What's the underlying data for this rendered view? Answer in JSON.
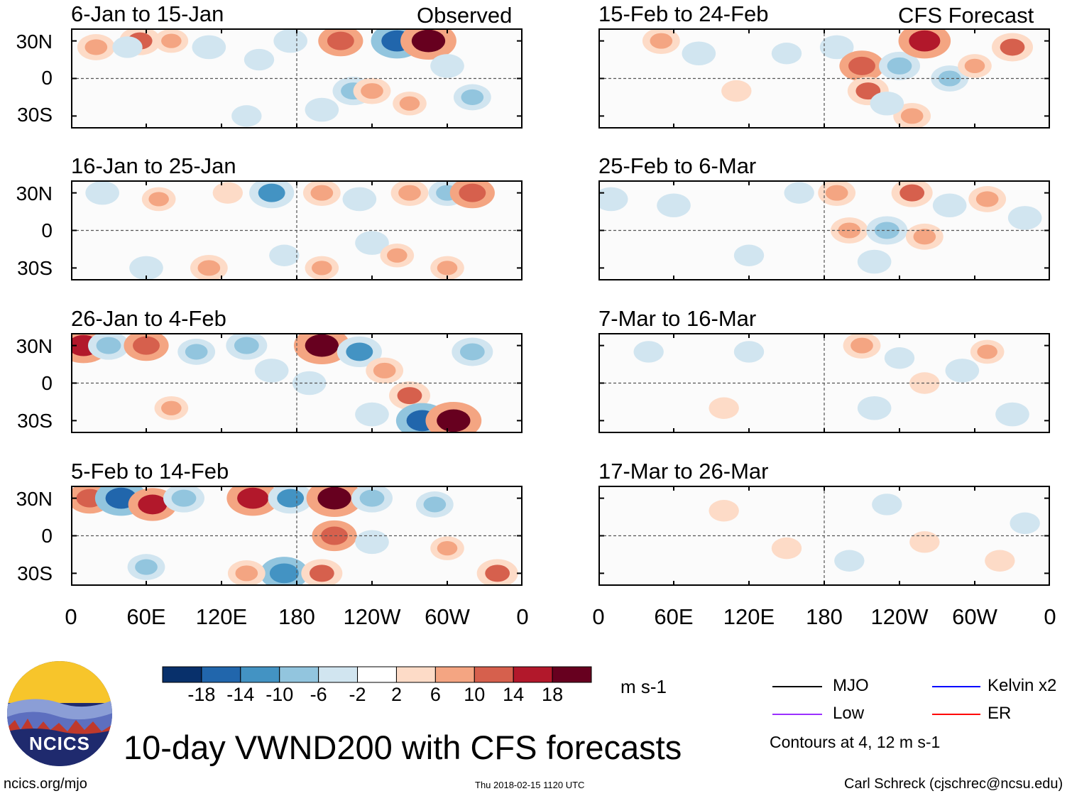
{
  "chart_data": {
    "type": "heatmap",
    "title": "10-day VWND200 with CFS forecasts",
    "columns": [
      {
        "label": "Observed",
        "panels": [
          {
            "period": "6-Jan to 15-Jan",
            "cells": [
              {
                "lon": 20,
                "lat": 25,
                "v": 8
              },
              {
                "lon": 55,
                "lat": 30,
                "v": 10
              },
              {
                "lon": 45,
                "lat": 25,
                "v": -4
              },
              {
                "lon": 80,
                "lat": 30,
                "v": 6
              },
              {
                "lon": 110,
                "lat": 25,
                "v": -6
              },
              {
                "lon": 150,
                "lat": 15,
                "v": -4
              },
              {
                "lon": 175,
                "lat": 30,
                "v": -6
              },
              {
                "lon": 215,
                "lat": 30,
                "v": 12
              },
              {
                "lon": 225,
                "lat": -10,
                "v": -10
              },
              {
                "lon": 240,
                "lat": -10,
                "v": 8
              },
              {
                "lon": 260,
                "lat": 30,
                "v": -16
              },
              {
                "lon": 285,
                "lat": 30,
                "v": 18
              },
              {
                "lon": 270,
                "lat": -20,
                "v": 6
              },
              {
                "lon": 300,
                "lat": 10,
                "v": -6
              },
              {
                "lon": 320,
                "lat": -15,
                "v": -8
              },
              {
                "lon": 200,
                "lat": -25,
                "v": -6
              },
              {
                "lon": 140,
                "lat": -30,
                "v": -4
              }
            ]
          },
          {
            "period": "16-Jan to 25-Jan",
            "cells": [
              {
                "lon": 25,
                "lat": 30,
                "v": -6
              },
              {
                "lon": 70,
                "lat": 25,
                "v": 6
              },
              {
                "lon": 125,
                "lat": 30,
                "v": 4
              },
              {
                "lon": 160,
                "lat": 30,
                "v": -12
              },
              {
                "lon": 200,
                "lat": 30,
                "v": 8
              },
              {
                "lon": 230,
                "lat": 25,
                "v": -6
              },
              {
                "lon": 270,
                "lat": 30,
                "v": 8
              },
              {
                "lon": 300,
                "lat": 30,
                "v": -8
              },
              {
                "lon": 320,
                "lat": 30,
                "v": 12
              },
              {
                "lon": 240,
                "lat": -10,
                "v": -6
              },
              {
                "lon": 260,
                "lat": -20,
                "v": 6
              },
              {
                "lon": 300,
                "lat": -30,
                "v": 6
              },
              {
                "lon": 60,
                "lat": -30,
                "v": -6
              },
              {
                "lon": 110,
                "lat": -30,
                "v": 8
              },
              {
                "lon": 170,
                "lat": -20,
                "v": -4
              },
              {
                "lon": 200,
                "lat": -30,
                "v": 6
              }
            ]
          },
          {
            "period": "26-Jan to 4-Feb",
            "cells": [
              {
                "lon": 10,
                "lat": 30,
                "v": 16
              },
              {
                "lon": 30,
                "lat": 30,
                "v": -10
              },
              {
                "lon": 60,
                "lat": 30,
                "v": 12
              },
              {
                "lon": 100,
                "lat": 25,
                "v": -8
              },
              {
                "lon": 140,
                "lat": 30,
                "v": -10
              },
              {
                "lon": 160,
                "lat": 10,
                "v": -6
              },
              {
                "lon": 200,
                "lat": 30,
                "v": 18
              },
              {
                "lon": 230,
                "lat": 25,
                "v": -12
              },
              {
                "lon": 250,
                "lat": 10,
                "v": 8
              },
              {
                "lon": 270,
                "lat": -10,
                "v": 10
              },
              {
                "lon": 280,
                "lat": -30,
                "v": -16
              },
              {
                "lon": 305,
                "lat": -30,
                "v": 18
              },
              {
                "lon": 320,
                "lat": 25,
                "v": -10
              },
              {
                "lon": 80,
                "lat": -20,
                "v": 6
              },
              {
                "lon": 190,
                "lat": 0,
                "v": -6
              },
              {
                "lon": 240,
                "lat": -25,
                "v": -6
              }
            ]
          },
          {
            "period": "5-Feb to 14-Feb",
            "cells": [
              {
                "lon": 15,
                "lat": 30,
                "v": 12
              },
              {
                "lon": 40,
                "lat": 30,
                "v": -16
              },
              {
                "lon": 65,
                "lat": 25,
                "v": 14
              },
              {
                "lon": 90,
                "lat": 30,
                "v": -10
              },
              {
                "lon": 145,
                "lat": 30,
                "v": 16
              },
              {
                "lon": 175,
                "lat": 30,
                "v": -12
              },
              {
                "lon": 210,
                "lat": 30,
                "v": 18
              },
              {
                "lon": 240,
                "lat": 30,
                "v": -10
              },
              {
                "lon": 210,
                "lat": 0,
                "v": 12
              },
              {
                "lon": 240,
                "lat": -5,
                "v": -6
              },
              {
                "lon": 170,
                "lat": -30,
                "v": -14
              },
              {
                "lon": 200,
                "lat": -30,
                "v": 10
              },
              {
                "lon": 140,
                "lat": -30,
                "v": 8
              },
              {
                "lon": 60,
                "lat": -25,
                "v": -8
              },
              {
                "lon": 290,
                "lat": 25,
                "v": -8
              },
              {
                "lon": 340,
                "lat": -30,
                "v": 10
              },
              {
                "lon": 300,
                "lat": -10,
                "v": 6
              }
            ]
          }
        ]
      },
      {
        "label": "CFS Forecast",
        "panels": [
          {
            "period": "15-Feb to 24-Feb",
            "cells": [
              {
                "lon": 50,
                "lat": 30,
                "v": 8
              },
              {
                "lon": 80,
                "lat": 20,
                "v": -6
              },
              {
                "lon": 150,
                "lat": 20,
                "v": -4
              },
              {
                "lon": 190,
                "lat": 25,
                "v": -6
              },
              {
                "lon": 210,
                "lat": 10,
                "v": 12
              },
              {
                "lon": 215,
                "lat": -10,
                "v": 10
              },
              {
                "lon": 240,
                "lat": 10,
                "v": -10
              },
              {
                "lon": 260,
                "lat": 30,
                "v": 16
              },
              {
                "lon": 280,
                "lat": 0,
                "v": -8
              },
              {
                "lon": 300,
                "lat": 10,
                "v": 6
              },
              {
                "lon": 330,
                "lat": 25,
                "v": 10
              },
              {
                "lon": 250,
                "lat": -30,
                "v": 8
              },
              {
                "lon": 230,
                "lat": -20,
                "v": -6
              },
              {
                "lon": 110,
                "lat": -10,
                "v": 4
              }
            ]
          },
          {
            "period": "25-Feb to 6-Mar",
            "cells": [
              {
                "lon": 10,
                "lat": 25,
                "v": -6
              },
              {
                "lon": 60,
                "lat": 20,
                "v": -6
              },
              {
                "lon": 160,
                "lat": 30,
                "v": -4
              },
              {
                "lon": 190,
                "lat": 30,
                "v": 8
              },
              {
                "lon": 200,
                "lat": 0,
                "v": 8
              },
              {
                "lon": 230,
                "lat": 0,
                "v": -10
              },
              {
                "lon": 260,
                "lat": -5,
                "v": 8
              },
              {
                "lon": 250,
                "lat": 30,
                "v": 10
              },
              {
                "lon": 280,
                "lat": 20,
                "v": -6
              },
              {
                "lon": 310,
                "lat": 25,
                "v": 8
              },
              {
                "lon": 340,
                "lat": 10,
                "v": -6
              },
              {
                "lon": 120,
                "lat": -20,
                "v": -4
              },
              {
                "lon": 220,
                "lat": -25,
                "v": -6
              }
            ]
          },
          {
            "period": "7-Mar to 16-Mar",
            "cells": [
              {
                "lon": 40,
                "lat": 25,
                "v": -4
              },
              {
                "lon": 120,
                "lat": 25,
                "v": -4
              },
              {
                "lon": 210,
                "lat": 30,
                "v": 8
              },
              {
                "lon": 240,
                "lat": 20,
                "v": -4
              },
              {
                "lon": 260,
                "lat": 0,
                "v": 4
              },
              {
                "lon": 290,
                "lat": 10,
                "v": -6
              },
              {
                "lon": 310,
                "lat": 25,
                "v": 6
              },
              {
                "lon": 220,
                "lat": -20,
                "v": -6
              },
              {
                "lon": 330,
                "lat": -25,
                "v": -6
              },
              {
                "lon": 100,
                "lat": -20,
                "v": 4
              }
            ]
          },
          {
            "period": "17-Mar to 26-Mar",
            "cells": [
              {
                "lon": 100,
                "lat": 20,
                "v": 4
              },
              {
                "lon": 150,
                "lat": -10,
                "v": 4
              },
              {
                "lon": 200,
                "lat": -20,
                "v": -4
              },
              {
                "lon": 230,
                "lat": 25,
                "v": -4
              },
              {
                "lon": 260,
                "lat": -5,
                "v": 4
              },
              {
                "lon": 320,
                "lat": -20,
                "v": 4
              },
              {
                "lon": 340,
                "lat": 10,
                "v": -4
              }
            ]
          }
        ]
      }
    ],
    "xticks": [
      "0",
      "60E",
      "120E",
      "180",
      "120W",
      "60W",
      "0"
    ],
    "yticks": [
      "30N",
      "0",
      "30S"
    ],
    "xlim": [
      0,
      360
    ],
    "ylim": [
      -40,
      40
    ],
    "levels": [
      -18,
      -14,
      -10,
      -6,
      -2,
      2,
      6,
      10,
      14,
      18
    ],
    "colors": [
      "#08306b",
      "#2166ac",
      "#4393c3",
      "#92c5de",
      "#d1e5f0",
      "#ffffff",
      "#fddbc7",
      "#f4a582",
      "#d6604d",
      "#b2182b",
      "#67001f"
    ],
    "units": "m s-1",
    "legend": [
      {
        "label": "MJO",
        "color": "#000000"
      },
      {
        "label": "Kelvin x2",
        "color": "#0000ff"
      },
      {
        "label": "Low",
        "color": "#9b30ff"
      },
      {
        "label": "ER",
        "color": "#ff0000"
      }
    ],
    "contour_note": "Contours at 4, 12 m s-1"
  },
  "footer": {
    "logo_text": "NCICS",
    "url": "ncics.org/mjo",
    "timestamp": "Thu 2018-02-15 1120 UTC",
    "author": "Carl Schreck (cjschrec@ncsu.edu)"
  }
}
